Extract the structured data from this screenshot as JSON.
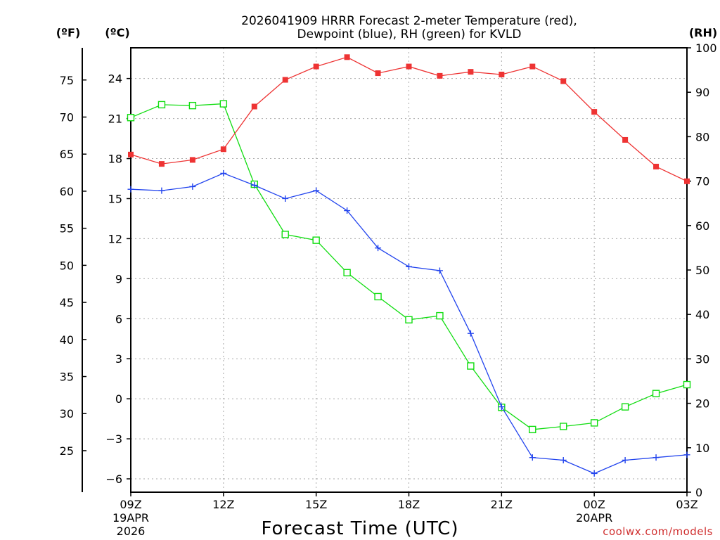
{
  "chart_data": {
    "type": "line",
    "title_line1": "2026041909 HRRR Forecast 2-meter Temperature (red),",
    "title_line2": "Dewpoint (blue), RH (green) for KVLD",
    "xlabel": "Forecast Time (UTC)",
    "watermark": "coolwx.com/models",
    "unit_labels": {
      "fahrenheit": "(ºF)",
      "celsius": "(ºC)",
      "rh": "(RH)"
    },
    "x_hours": [
      0,
      1,
      2,
      3,
      4,
      5,
      6,
      7,
      8,
      9,
      10,
      11,
      12,
      13,
      14,
      15,
      16,
      17,
      18
    ],
    "x_ticks": [
      {
        "hour": 0,
        "label": "09Z",
        "sub1": "19APR",
        "sub2": "2026"
      },
      {
        "hour": 3,
        "label": "12Z",
        "sub1": "",
        "sub2": ""
      },
      {
        "hour": 6,
        "label": "15Z",
        "sub1": "",
        "sub2": ""
      },
      {
        "hour": 9,
        "label": "18Z",
        "sub1": "",
        "sub2": ""
      },
      {
        "hour": 12,
        "label": "21Z",
        "sub1": "",
        "sub2": ""
      },
      {
        "hour": 15,
        "label": "00Z",
        "sub1": "20APR",
        "sub2": ""
      },
      {
        "hour": 18,
        "label": "03Z",
        "sub1": "",
        "sub2": ""
      }
    ],
    "c_axis": {
      "min": -7,
      "max": 26.3,
      "ticks": [
        -6,
        -3,
        0,
        3,
        6,
        9,
        12,
        15,
        18,
        21,
        24
      ]
    },
    "f_axis": {
      "ticks": [
        25,
        30,
        35,
        40,
        45,
        50,
        55,
        60,
        65,
        70,
        75
      ]
    },
    "rh_axis": {
      "min": 0,
      "max": 100,
      "ticks": [
        0,
        10,
        20,
        30,
        40,
        50,
        60,
        70,
        80,
        90,
        100
      ]
    },
    "series": [
      {
        "name": "Temperature",
        "unit": "C",
        "color": "#ee3333",
        "marker": "filled-square",
        "values": [
          18.3,
          17.6,
          17.9,
          18.7,
          21.9,
          23.9,
          24.9,
          25.6,
          24.4,
          24.9,
          24.2,
          24.5,
          24.3,
          24.9,
          23.8,
          21.5,
          19.4,
          17.4,
          16.3
        ]
      },
      {
        "name": "Dewpoint",
        "unit": "C",
        "color": "#2244ee",
        "marker": "plus",
        "values": [
          15.7,
          15.6,
          15.9,
          16.9,
          16.0,
          15.0,
          15.6,
          14.1,
          11.3,
          9.9,
          9.6,
          4.9,
          -0.6,
          -4.4,
          -4.6,
          -5.6,
          -4.6,
          -4.4,
          -4.2
        ]
      },
      {
        "name": "RH",
        "unit": "%",
        "color": "#11dd11",
        "marker": "open-square",
        "values": [
          84.3,
          87.2,
          87.0,
          87.4,
          69.3,
          58.0,
          56.7,
          49.4,
          44.0,
          38.8,
          39.7,
          28.4,
          19.1,
          14.1,
          14.8,
          15.6,
          19.2,
          22.2,
          24.2
        ]
      }
    ]
  }
}
